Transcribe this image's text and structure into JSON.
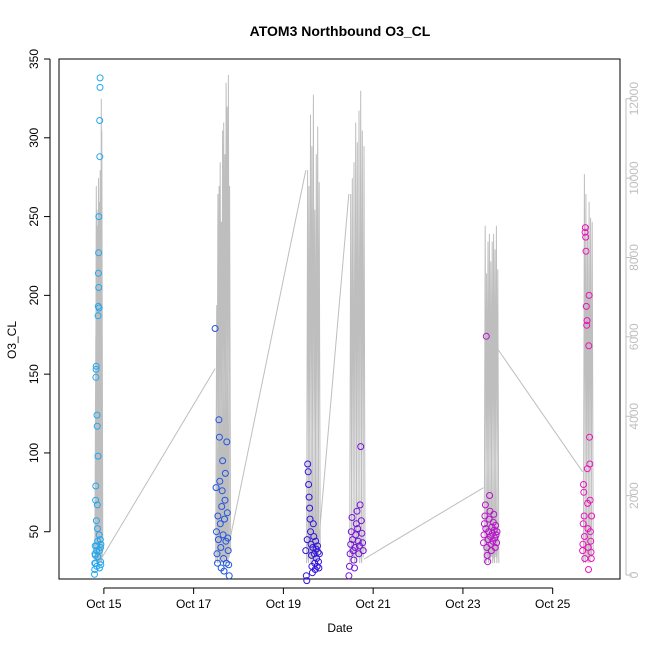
{
  "chart_data": {
    "type": "scatter",
    "title": "ATOM3 Northbound O3_CL",
    "xlabel": "Date",
    "ylabel": "O3_CL",
    "x_range": [
      "2017-10-14 00:00",
      "2017-10-26 12:00"
    ],
    "x_ticks": [
      {
        "date": "2017-10-15",
        "label": "Oct 15"
      },
      {
        "date": "2017-10-17",
        "label": "Oct 17"
      },
      {
        "date": "2017-10-19",
        "label": "Oct 19"
      },
      {
        "date": "2017-10-21",
        "label": "Oct 21"
      },
      {
        "date": "2017-10-23",
        "label": "Oct 23"
      },
      {
        "date": "2017-10-25",
        "label": "Oct 25"
      }
    ],
    "y_left": {
      "range": [
        20,
        350
      ],
      "ticks": [
        "50",
        "100",
        "150",
        "200",
        "250",
        "300",
        "350"
      ]
    },
    "y_right": {
      "range": [
        -100,
        13000
      ],
      "ticks": [
        "0",
        "2000",
        "4000",
        "6000",
        "8000",
        "10000",
        "12000"
      ],
      "color": "#bebebe"
    },
    "grid": false,
    "series": [
      {
        "color": "#22a7f0",
        "points": [
          [
            "2017-10-14 19:00",
            23
          ],
          [
            "2017-10-14 19:05",
            26
          ],
          [
            "2017-10-14 19:10",
            30
          ],
          [
            "2017-10-14 19:15",
            36
          ],
          [
            "2017-10-14 19:20",
            41
          ],
          [
            "2017-10-14 19:25",
            35
          ],
          [
            "2017-10-14 19:30",
            30
          ],
          [
            "2017-10-14 19:35",
            70
          ],
          [
            "2017-10-14 19:40",
            79
          ],
          [
            "2017-10-14 19:45",
            148
          ],
          [
            "2017-10-14 19:50",
            153
          ],
          [
            "2017-10-14 19:55",
            155
          ],
          [
            "2017-10-14 20:00",
            57
          ],
          [
            "2017-10-14 20:05",
            41
          ],
          [
            "2017-10-14 20:10",
            38
          ],
          [
            "2017-10-14 20:15",
            28
          ],
          [
            "2017-10-14 20:20",
            124
          ],
          [
            "2017-10-14 20:25",
            117
          ],
          [
            "2017-10-14 20:30",
            67
          ],
          [
            "2017-10-14 20:35",
            52
          ],
          [
            "2017-10-14 20:40",
            44
          ],
          [
            "2017-10-14 20:45",
            34
          ],
          [
            "2017-10-14 20:50",
            98
          ],
          [
            "2017-10-14 20:55",
            187
          ],
          [
            "2017-10-14 21:00",
            193
          ],
          [
            "2017-10-14 21:05",
            214
          ],
          [
            "2017-10-14 21:10",
            227
          ],
          [
            "2017-10-14 21:15",
            205
          ],
          [
            "2017-10-14 21:20",
            250
          ],
          [
            "2017-10-14 21:25",
            192
          ],
          [
            "2017-10-14 21:30",
            48
          ],
          [
            "2017-10-14 21:35",
            38
          ],
          [
            "2017-10-14 21:40",
            27
          ],
          [
            "2017-10-14 21:45",
            311
          ],
          [
            "2017-10-14 21:50",
            288
          ],
          [
            "2017-10-14 21:55",
            332
          ],
          [
            "2017-10-14 22:00",
            338
          ],
          [
            "2017-10-14 22:05",
            45
          ],
          [
            "2017-10-14 22:10",
            40
          ],
          [
            "2017-10-14 22:15",
            31
          ],
          [
            "2017-10-14 22:20",
            29
          ],
          [
            "2017-10-14 22:25",
            42
          ]
        ]
      },
      {
        "color": "#2255e0",
        "points": [
          [
            "2017-10-17 11:30",
            179
          ],
          [
            "2017-10-17 12:00",
            78
          ],
          [
            "2017-10-17 12:15",
            50
          ],
          [
            "2017-10-17 12:30",
            36
          ],
          [
            "2017-10-17 12:45",
            30
          ],
          [
            "2017-10-17 13:00",
            60
          ],
          [
            "2017-10-17 13:15",
            45
          ],
          [
            "2017-10-17 13:30",
            121
          ],
          [
            "2017-10-17 13:45",
            110
          ],
          [
            "2017-10-17 14:00",
            82
          ],
          [
            "2017-10-17 14:15",
            55
          ],
          [
            "2017-10-17 14:30",
            40
          ],
          [
            "2017-10-17 14:45",
            27
          ],
          [
            "2017-10-17 15:00",
            66
          ],
          [
            "2017-10-17 15:15",
            76
          ],
          [
            "2017-10-17 15:30",
            95
          ],
          [
            "2017-10-17 15:45",
            48
          ],
          [
            "2017-10-17 16:00",
            33
          ],
          [
            "2017-10-17 16:15",
            25
          ],
          [
            "2017-10-17 16:30",
            58
          ],
          [
            "2017-10-17 16:45",
            70
          ],
          [
            "2017-10-17 17:00",
            87
          ],
          [
            "2017-10-17 17:15",
            44
          ],
          [
            "2017-10-17 17:30",
            30
          ],
          [
            "2017-10-17 17:45",
            107
          ],
          [
            "2017-10-17 18:00",
            62
          ],
          [
            "2017-10-17 18:15",
            46
          ],
          [
            "2017-10-17 18:30",
            38
          ],
          [
            "2017-10-17 18:45",
            29
          ],
          [
            "2017-10-17 19:00",
            22
          ]
        ]
      },
      {
        "color": "#3311dd",
        "points": [
          [
            "2017-10-19 12:00",
            38
          ],
          [
            "2017-10-19 12:15",
            22
          ],
          [
            "2017-10-19 12:30",
            19
          ],
          [
            "2017-10-19 12:45",
            45
          ],
          [
            "2017-10-19 13:00",
            93
          ],
          [
            "2017-10-19 13:15",
            88
          ],
          [
            "2017-10-19 13:30",
            80
          ],
          [
            "2017-10-19 13:45",
            72
          ],
          [
            "2017-10-19 14:00",
            65
          ],
          [
            "2017-10-19 14:15",
            58
          ],
          [
            "2017-10-19 14:30",
            50
          ],
          [
            "2017-10-19 14:45",
            42
          ],
          [
            "2017-10-19 15:00",
            35
          ],
          [
            "2017-10-19 15:15",
            28
          ],
          [
            "2017-10-19 15:30",
            24
          ],
          [
            "2017-10-19 15:45",
            40
          ],
          [
            "2017-10-19 16:00",
            55
          ],
          [
            "2017-10-19 16:15",
            47
          ],
          [
            "2017-10-19 16:30",
            36
          ],
          [
            "2017-10-19 16:45",
            30
          ],
          [
            "2017-10-19 17:00",
            26
          ],
          [
            "2017-10-19 17:15",
            44
          ],
          [
            "2017-10-19 17:30",
            39
          ],
          [
            "2017-10-19 17:45",
            33
          ],
          [
            "2017-10-19 18:00",
            28
          ],
          [
            "2017-10-19 18:15",
            41
          ],
          [
            "2017-10-19 18:30",
            37
          ],
          [
            "2017-10-19 18:45",
            31
          ],
          [
            "2017-10-19 19:00",
            27
          ],
          [
            "2017-10-19 19:15",
            36
          ]
        ]
      },
      {
        "color": "#7711dd",
        "points": [
          [
            "2017-10-20 11:00",
            22
          ],
          [
            "2017-10-20 11:20",
            28
          ],
          [
            "2017-10-20 11:40",
            36
          ],
          [
            "2017-10-20 12:00",
            42
          ],
          [
            "2017-10-20 12:20",
            50
          ],
          [
            "2017-10-20 12:40",
            59
          ],
          [
            "2017-10-20 13:00",
            45
          ],
          [
            "2017-10-20 13:20",
            38
          ],
          [
            "2017-10-20 13:40",
            32
          ],
          [
            "2017-10-20 14:00",
            27
          ],
          [
            "2017-10-20 14:20",
            40
          ],
          [
            "2017-10-20 14:40",
            48
          ],
          [
            "2017-10-20 15:00",
            55
          ],
          [
            "2017-10-20 15:20",
            63
          ],
          [
            "2017-10-20 15:40",
            52
          ],
          [
            "2017-10-20 16:00",
            44
          ],
          [
            "2017-10-20 16:20",
            36
          ],
          [
            "2017-10-20 16:40",
            41
          ],
          [
            "2017-10-20 17:00",
            67
          ],
          [
            "2017-10-20 17:20",
            104
          ],
          [
            "2017-10-20 17:40",
            57
          ],
          [
            "2017-10-20 18:00",
            49
          ],
          [
            "2017-10-20 18:20",
            43
          ],
          [
            "2017-10-20 18:40",
            38
          ]
        ]
      },
      {
        "color": "#bb11cc",
        "points": [
          [
            "2017-10-23 11:00",
            43
          ],
          [
            "2017-10-23 11:15",
            48
          ],
          [
            "2017-10-23 11:30",
            55
          ],
          [
            "2017-10-23 11:45",
            60
          ],
          [
            "2017-10-23 12:00",
            67
          ],
          [
            "2017-10-23 12:15",
            52
          ],
          [
            "2017-10-23 12:30",
            174
          ],
          [
            "2017-10-23 12:45",
            40
          ],
          [
            "2017-10-23 13:00",
            35
          ],
          [
            "2017-10-23 13:15",
            31
          ],
          [
            "2017-10-23 13:30",
            45
          ],
          [
            "2017-10-23 13:45",
            50
          ],
          [
            "2017-10-23 14:00",
            58
          ],
          [
            "2017-10-23 14:15",
            73
          ],
          [
            "2017-10-23 14:30",
            63
          ],
          [
            "2017-10-23 14:45",
            47
          ],
          [
            "2017-10-23 15:00",
            42
          ],
          [
            "2017-10-23 15:15",
            38
          ],
          [
            "2017-10-23 15:30",
            53
          ],
          [
            "2017-10-23 15:45",
            49
          ],
          [
            "2017-10-23 16:00",
            44
          ],
          [
            "2017-10-23 16:15",
            56
          ],
          [
            "2017-10-23 16:30",
            61
          ],
          [
            "2017-10-23 16:45",
            51
          ],
          [
            "2017-10-23 17:00",
            46
          ],
          [
            "2017-10-23 17:15",
            40
          ],
          [
            "2017-10-23 17:30",
            54
          ],
          [
            "2017-10-23 17:45",
            48
          ],
          [
            "2017-10-23 18:00",
            43
          ],
          [
            "2017-10-23 18:15",
            50
          ]
        ]
      },
      {
        "color": "#ee11bb",
        "points": [
          [
            "2017-10-25 16:00",
            38
          ],
          [
            "2017-10-25 16:10",
            42
          ],
          [
            "2017-10-25 16:20",
            55
          ],
          [
            "2017-10-25 16:30",
            80
          ],
          [
            "2017-10-25 16:40",
            75
          ],
          [
            "2017-10-25 16:50",
            60
          ],
          [
            "2017-10-25 17:00",
            47
          ],
          [
            "2017-10-25 17:10",
            33
          ],
          [
            "2017-10-25 17:20",
            240
          ],
          [
            "2017-10-25 17:30",
            243
          ],
          [
            "2017-10-25 17:40",
            237
          ],
          [
            "2017-10-25 17:50",
            228
          ],
          [
            "2017-10-25 18:00",
            193
          ],
          [
            "2017-10-25 18:10",
            181
          ],
          [
            "2017-10-25 18:20",
            184
          ],
          [
            "2017-10-25 18:30",
            90
          ],
          [
            "2017-10-25 18:40",
            68
          ],
          [
            "2017-10-25 18:50",
            52
          ],
          [
            "2017-10-25 19:00",
            40
          ],
          [
            "2017-10-25 19:10",
            26
          ],
          [
            "2017-10-25 19:20",
            168
          ],
          [
            "2017-10-25 19:30",
            200
          ],
          [
            "2017-10-25 19:40",
            110
          ],
          [
            "2017-10-25 19:50",
            93
          ],
          [
            "2017-10-25 20:00",
            70
          ],
          [
            "2017-10-25 20:10",
            50
          ],
          [
            "2017-10-25 20:20",
            44
          ],
          [
            "2017-10-25 20:30",
            37
          ],
          [
            "2017-10-25 20:40",
            33
          ],
          [
            "2017-10-25 20:50",
            60
          ]
        ]
      }
    ],
    "secondary_line": {
      "color": "#bebebe",
      "bursts": [
        {
          "start": "2017-10-14 19:00",
          "end": "2017-10-14 22:30",
          "peaks": [
            6000,
            9800,
            9200,
            8800,
            7600,
            10000,
            9400,
            8600,
            10200,
            9700,
            12000,
            11200
          ]
        },
        {
          "start": "2017-10-17 11:30",
          "end": "2017-10-17 19:00",
          "peaks": [
            6800,
            9600,
            9800,
            10400,
            8900,
            11200,
            11400,
            10600,
            12400,
            11800,
            12600,
            9800
          ]
        },
        {
          "start": "2017-10-19 12:00",
          "end": "2017-10-19 19:00",
          "peaks": [
            10200,
            9800,
            11600,
            10800,
            12100,
            9200,
            10600,
            11300,
            9900
          ]
        },
        {
          "start": "2017-10-20 11:00",
          "end": "2017-10-20 19:00",
          "peaks": [
            9600,
            10000,
            10400,
            11400,
            10900,
            11700,
            12200,
            11200,
            10800
          ]
        },
        {
          "start": "2017-10-23 11:00",
          "end": "2017-10-23 18:30",
          "peaks": [
            8800,
            7600,
            8400,
            8600,
            7900,
            8400,
            8600,
            8200,
            8800,
            7700
          ]
        },
        {
          "start": "2017-10-25 16:00",
          "end": "2017-10-25 21:00",
          "peaks": [
            10100,
            9600,
            8800,
            9400,
            9000,
            8900
          ]
        }
      ],
      "connectors": [
        [
          [
            "2017-10-14 22:30",
            400
          ],
          [
            "2017-10-17 11:30",
            5200
          ]
        ],
        [
          [
            "2017-10-17 19:00",
            800
          ],
          [
            "2017-10-19 12:00",
            10200
          ]
        ],
        [
          [
            "2017-10-19 19:00",
            900
          ],
          [
            "2017-10-20 11:00",
            9600
          ]
        ],
        [
          [
            "2017-10-20 19:00",
            400
          ],
          [
            "2017-10-23 11:00",
            2200
          ]
        ],
        [
          [
            "2017-10-23 18:30",
            5700
          ],
          [
            "2017-10-25 16:00",
            2600
          ]
        ]
      ]
    }
  }
}
